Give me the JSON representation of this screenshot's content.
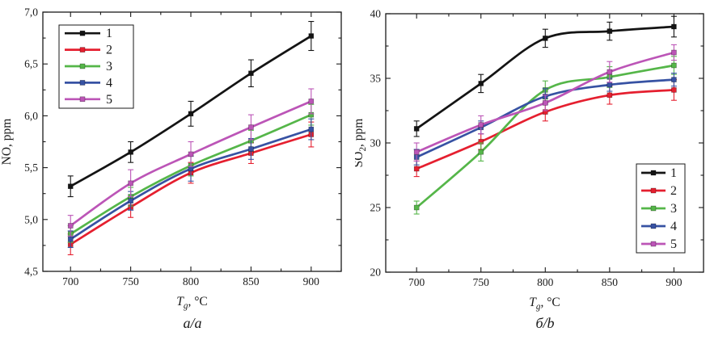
{
  "figure": {
    "description": "Two line charts of NO and SO2 emissions (ppm) versus gas temperature Tg (°C), five numbered series each",
    "captions": {
      "a": "a/a",
      "b": "б/b"
    }
  },
  "chart_data": [
    {
      "type": "line",
      "title": "",
      "caption": "a/a",
      "xlabel": "Tg, °C",
      "ylabel": "NO, ppm",
      "xlabel_parts": [
        {
          "text": "T",
          "italic": true
        },
        {
          "text": "g",
          "sub": true,
          "italic": true
        },
        {
          "text": ", °C"
        }
      ],
      "ylabel_parts": [
        {
          "text": "NO, ppm"
        }
      ],
      "x": [
        700,
        750,
        800,
        850,
        900
      ],
      "xlim": [
        677,
        925
      ],
      "ylim": [
        4.5,
        7.0
      ],
      "xticks": [
        {
          "v": 700,
          "label": "700"
        },
        {
          "v": 750,
          "label": "750"
        },
        {
          "v": 800,
          "label": "800"
        },
        {
          "v": 850,
          "label": "850"
        },
        {
          "v": 900,
          "label": "900"
        }
      ],
      "yticks": [
        {
          "v": 4.5,
          "label": "4,5"
        },
        {
          "v": 5.0,
          "label": "5,0"
        },
        {
          "v": 5.5,
          "label": "5,5"
        },
        {
          "v": 6.0,
          "label": "6,0"
        },
        {
          "v": 6.5,
          "label": "6,5"
        },
        {
          "v": 7.0,
          "label": "7,0"
        }
      ],
      "minor_x_step": 25,
      "minor_y_step": 0.25,
      "legend_position": "top-left",
      "legend_labels": [
        "1",
        "2",
        "3",
        "4",
        "5"
      ],
      "series": [
        {
          "name": "1",
          "color": "#141414",
          "values": [
            5.32,
            5.65,
            6.02,
            6.41,
            6.77
          ],
          "err": [
            0.1,
            0.1,
            0.12,
            0.13,
            0.14
          ]
        },
        {
          "name": "2",
          "color": "#e51f2f",
          "values": [
            4.76,
            5.12,
            5.45,
            5.64,
            5.82
          ],
          "err": [
            0.1,
            0.1,
            0.1,
            0.1,
            0.12
          ]
        },
        {
          "name": "3",
          "color": "#55b649",
          "values": [
            4.86,
            5.22,
            5.52,
            5.76,
            6.01
          ],
          "err": [
            0.08,
            0.09,
            0.1,
            0.1,
            0.1
          ]
        },
        {
          "name": "4",
          "color": "#3752a3",
          "values": [
            4.81,
            5.18,
            5.49,
            5.68,
            5.87
          ],
          "err": [
            0.08,
            0.09,
            0.12,
            0.1,
            0.1
          ]
        },
        {
          "name": "5",
          "color": "#bc55b7",
          "values": [
            4.94,
            5.35,
            5.63,
            5.89,
            6.14
          ],
          "err": [
            0.1,
            0.13,
            0.12,
            0.12,
            0.12
          ]
        }
      ]
    },
    {
      "type": "line",
      "title": "",
      "caption": "б/b",
      "xlabel": "Tg, °C",
      "ylabel": "SO2, ppm",
      "xlabel_parts": [
        {
          "text": "T",
          "italic": true
        },
        {
          "text": "g",
          "sub": true,
          "italic": true
        },
        {
          "text": ", °C"
        }
      ],
      "ylabel_parts": [
        {
          "text": "SO"
        },
        {
          "text": "2",
          "sub": true
        },
        {
          "text": ", ppm"
        }
      ],
      "x": [
        700,
        750,
        800,
        850,
        900
      ],
      "xlim": [
        676,
        923
      ],
      "ylim": [
        20,
        40
      ],
      "xticks": [
        {
          "v": 700,
          "label": "700"
        },
        {
          "v": 750,
          "label": "750"
        },
        {
          "v": 800,
          "label": "800"
        },
        {
          "v": 850,
          "label": "850"
        },
        {
          "v": 900,
          "label": "900"
        }
      ],
      "yticks": [
        {
          "v": 20,
          "label": "20"
        },
        {
          "v": 25,
          "label": "25"
        },
        {
          "v": 30,
          "label": "30"
        },
        {
          "v": 35,
          "label": "35"
        },
        {
          "v": 40,
          "label": "40"
        }
      ],
      "minor_x_step": 25,
      "minor_y_step": 2.5,
      "legend_position": "bottom-right",
      "legend_labels": [
        "1",
        "2",
        "3",
        "4",
        "5"
      ],
      "series": [
        {
          "name": "1",
          "color": "#141414",
          "values": [
            31.1,
            34.6,
            38.1,
            38.65,
            39.0
          ],
          "err": [
            0.6,
            0.7,
            0.7,
            0.7,
            0.8
          ]
        },
        {
          "name": "2",
          "color": "#e51f2f",
          "values": [
            28.0,
            30.1,
            32.4,
            33.7,
            34.1
          ],
          "err": [
            0.6,
            0.6,
            0.7,
            0.7,
            0.8
          ]
        },
        {
          "name": "3",
          "color": "#55b649",
          "values": [
            25.0,
            29.3,
            34.1,
            35.1,
            36.0
          ],
          "err": [
            0.5,
            0.7,
            0.7,
            0.8,
            0.7
          ]
        },
        {
          "name": "4",
          "color": "#3752a3",
          "values": [
            28.9,
            31.2,
            33.6,
            34.5,
            34.9
          ],
          "err": [
            0.6,
            0.5,
            0.6,
            0.5,
            0.5
          ]
        },
        {
          "name": "5",
          "color": "#bc55b7",
          "values": [
            29.3,
            31.4,
            33.1,
            35.5,
            37.0
          ],
          "err": [
            0.7,
            0.7,
            0.6,
            0.8,
            0.6
          ]
        }
      ]
    }
  ]
}
